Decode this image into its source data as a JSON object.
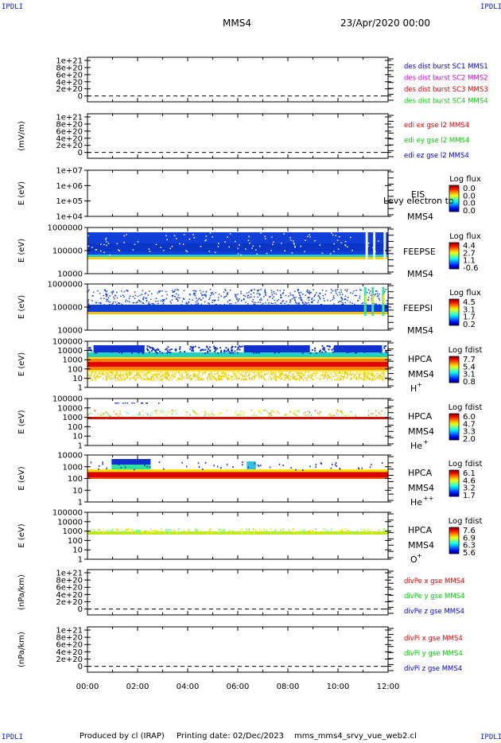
{
  "header": {
    "corner_label": "IPDLI",
    "spacecraft": "MMS4",
    "date_time": "23/Apr/2020 00:00"
  },
  "footer": {
    "produced_by": "Produced by cl (IRAP)",
    "printing_date": "Printing date: 02/Dec/2023",
    "script_name": "mms_mms4_srvy_vue_web2.cl"
  },
  "time_axis": {
    "tick_labels": [
      "00:00",
      "02:00",
      "04:00",
      "06:00",
      "08:00",
      "10:00",
      "12:00"
    ],
    "range_hours": [
      0,
      12
    ]
  },
  "chart_data": [
    {
      "type": "line",
      "ylabel": "",
      "ytick_labels": [
        "1e+21",
        "8e+20",
        "6e+20",
        "4e+20",
        "2e+20",
        "0"
      ],
      "legend": [
        {
          "text": "des dist burst SC1 MMS1",
          "color": "#0000cc"
        },
        {
          "text": "des dist burst SC2 MMS2",
          "color": "#cc00cc"
        },
        {
          "text": "des dist burst SC3 MMS3",
          "color": "#dd0000"
        },
        {
          "text": "des dist burst SC4 MMS4",
          "color": "#00cc00"
        }
      ],
      "dashed_zero_line": true
    },
    {
      "type": "line",
      "ylabel": "(mV/m)",
      "ytick_labels": [
        "1e+21",
        "8e+20",
        "6e+20",
        "4e+20",
        "2e+20",
        "0"
      ],
      "legend": [
        {
          "text": "edi ex gse l2 MMS4",
          "color": "#dd0000"
        },
        {
          "text": "edi ey gse l2 MMS4",
          "color": "#00cc00"
        },
        {
          "text": "edi ez gse l2 MMS4",
          "color": "#0000cc"
        }
      ],
      "dashed_zero_line": true
    },
    {
      "type": "heatmap",
      "ylabel": "E (eV)",
      "ytick_labels": [
        "1e+07",
        "1e+06",
        "1e+05",
        "1e+04"
      ],
      "instrument": "EIS",
      "instrument_note": "Levy electron to",
      "spacecraft": "MMS4",
      "colorbar_title": "Log flux",
      "colorbar_ticks": [
        "0.0",
        "0.0",
        "0.0",
        "0.0"
      ],
      "fill": "none"
    },
    {
      "type": "heatmap",
      "ylabel": "E (eV)",
      "ytick_labels": [
        "1000000",
        "100000",
        "10000"
      ],
      "instrument": "FEEPSE",
      "spacecraft": "MMS4",
      "colorbar_title": "Log flux",
      "colorbar_ticks": [
        "4.4",
        "2.7",
        "1.1",
        "-0.6"
      ],
      "fill": "feepse"
    },
    {
      "type": "heatmap",
      "ylabel": "E (eV)",
      "ytick_labels": [
        "1000000",
        "100000",
        "10000"
      ],
      "instrument": "FEEPSI",
      "spacecraft": "MMS4",
      "colorbar_title": "Log flux",
      "colorbar_ticks": [
        "4.5",
        "3.1",
        "1.7",
        "0.2"
      ],
      "fill": "feepsi"
    },
    {
      "type": "heatmap",
      "ylabel": "E (eV)",
      "ytick_labels": [
        "100000",
        "10000",
        "1000",
        "100",
        "10",
        "1"
      ],
      "instrument": "HPCA",
      "spacecraft": "MMS4",
      "species": "H",
      "species_charge": "+",
      "colorbar_title": "Log fdist",
      "colorbar_ticks": [
        "7.7",
        "5.4",
        "3.1",
        "0.8"
      ],
      "fill": "hplus"
    },
    {
      "type": "heatmap",
      "ylabel": "E (eV)",
      "ytick_labels": [
        "100000",
        "10000",
        "1000",
        "100",
        "10",
        "1"
      ],
      "instrument": "HPCA",
      "spacecraft": "MMS4",
      "species": "He",
      "species_charge": "+",
      "colorbar_title": "Log fdist",
      "colorbar_ticks": [
        "6.0",
        "4.7",
        "3.3",
        "2.0"
      ],
      "fill": "heplus"
    },
    {
      "type": "heatmap",
      "ylabel": "E (eV)",
      "ytick_labels": [
        "10000",
        "1000",
        "100",
        "10",
        "1"
      ],
      "instrument": "HPCA",
      "spacecraft": "MMS4",
      "species": "He",
      "species_charge": "++",
      "colorbar_title": "Log fdist",
      "colorbar_ticks": [
        "6.1",
        "4.6",
        "3.2",
        "1.7"
      ],
      "fill": "hepp"
    },
    {
      "type": "heatmap",
      "ylabel": "E (eV)",
      "ytick_labels": [
        "100000",
        "10000",
        "1000",
        "100",
        "10",
        "1"
      ],
      "instrument": "HPCA",
      "spacecraft": "MMS4",
      "species": "O",
      "species_charge": "+",
      "colorbar_title": "Log fdist",
      "colorbar_ticks": [
        "7.6",
        "6.9",
        "6.3",
        "5.6"
      ],
      "fill": "oplus"
    },
    {
      "type": "line",
      "ylabel": "(nPa/km)",
      "ytick_labels": [
        "1e+21",
        "8e+20",
        "6e+20",
        "4e+20",
        "2e+20",
        "0"
      ],
      "legend": [
        {
          "text": "divPe x gse MMS4",
          "color": "#dd0000"
        },
        {
          "text": "divPe y gse MMS4",
          "color": "#00cc00"
        },
        {
          "text": "divPe z gse MMS4",
          "color": "#0000cc"
        }
      ],
      "dashed_zero_line": true
    },
    {
      "type": "line",
      "ylabel": "(nPa/km)",
      "ytick_labels": [
        "1e+21",
        "8e+20",
        "6e+20",
        "4e+20",
        "2e+20",
        "0"
      ],
      "legend": [
        {
          "text": "divPi x gse MMS4",
          "color": "#dd0000"
        },
        {
          "text": "divPi y gse MMS4",
          "color": "#00cc00"
        },
        {
          "text": "divPi z gse MMS4",
          "color": "#0000cc"
        }
      ],
      "dashed_zero_line": true
    }
  ]
}
